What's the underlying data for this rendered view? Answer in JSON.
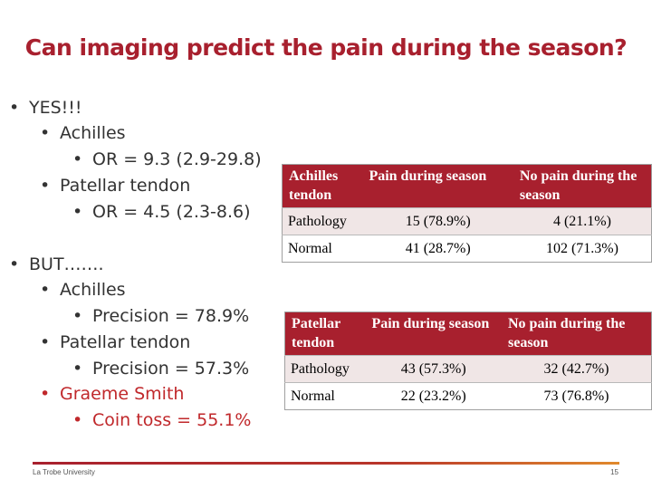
{
  "slide": {
    "title": "Can imaging predict the pain during the season?",
    "bullets": [
      {
        "text": "YES!!!",
        "level": 1,
        "color": "#333333"
      },
      {
        "text": "Achilles",
        "level": 2,
        "color": "#333333"
      },
      {
        "text": "OR = 9.3 (2.9-29.8)",
        "level": 3,
        "color": "#333333"
      },
      {
        "text": "Patellar tendon",
        "level": 2,
        "color": "#333333"
      },
      {
        "text": "OR = 4.5 (2.3-8.6)",
        "level": 3,
        "color": "#333333"
      },
      {
        "text": "BUT…….",
        "level": 1,
        "color": "#333333"
      },
      {
        "text": "Achilles",
        "level": 2,
        "color": "#333333"
      },
      {
        "text": "Precision = 78.9%",
        "level": 3,
        "color": "#333333"
      },
      {
        "text": "Patellar tendon",
        "level": 2,
        "color": "#333333"
      },
      {
        "text": "Precision = 57.3%",
        "level": 3,
        "color": "#333333"
      },
      {
        "text": "Graeme Smith",
        "level": 2,
        "color": "#c0282b"
      },
      {
        "text": "Coin toss = 55.1%",
        "level": 3,
        "color": "#c0282b"
      }
    ],
    "bullet_glyph": "•"
  },
  "tables": {
    "achilles": {
      "headers": [
        "Achilles tendon",
        "Pain during season",
        "No pain during the season"
      ],
      "rows": [
        [
          "Pathology",
          "15 (78.9%)",
          "4 (21.1%)"
        ],
        [
          "Normal",
          "41 (28.7%)",
          "102 (71.3%)"
        ]
      ]
    },
    "patellar": {
      "headers": [
        "Patellar tendon",
        "Pain during season",
        "No pain during the season"
      ],
      "rows": [
        [
          "Pathology",
          "43 (57.3%)",
          "32 (42.7%)"
        ],
        [
          "Normal",
          "22 (23.2%)",
          "73 (76.8%)"
        ]
      ]
    }
  },
  "footer": {
    "institution": "La Trobe University",
    "page_number": "15"
  },
  "colors": {
    "accent": "#a8202e",
    "highlight_text": "#c0282b",
    "row_tint": "#f0e6e6",
    "footer_gradient_end": "#e0892c"
  }
}
